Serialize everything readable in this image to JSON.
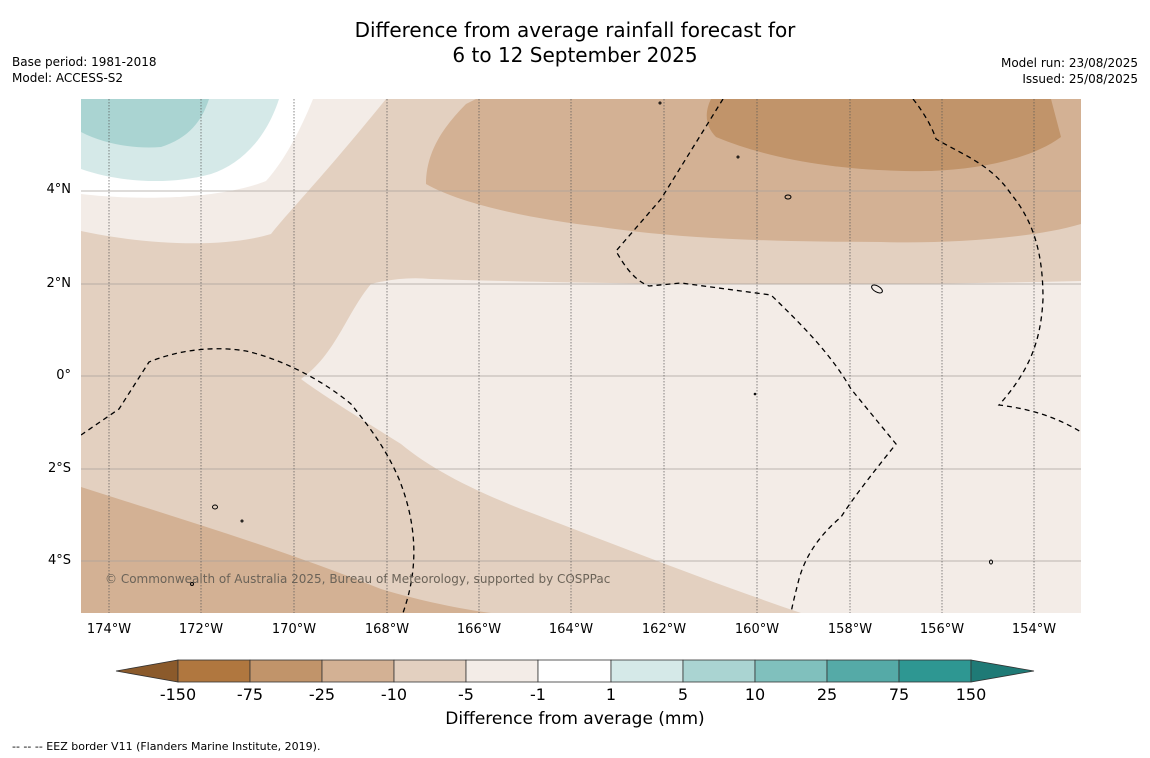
{
  "title": {
    "line1": "Difference from average rainfall forecast for",
    "line2": "6 to 12 September 2025"
  },
  "meta_left": {
    "base_period": "Base period: 1981-2018",
    "model": "Model: ACCESS-S2"
  },
  "meta_right": {
    "model_run": "Model run: 23/08/2025",
    "issued": "Issued: 25/08/2025"
  },
  "latitude_labels": [
    "4°N",
    "2°N",
    "0°",
    "2°S",
    "4°S"
  ],
  "longitude_labels": [
    "174°W",
    "172°W",
    "170°W",
    "168°W",
    "166°W",
    "164°W",
    "162°W",
    "160°W",
    "158°W",
    "156°W",
    "154°W"
  ],
  "copyright": "© Commonwealth of Australia 2025, Bureau of Meteorology, supported by COSPPac",
  "colorbar": {
    "title": "Difference from average (mm)",
    "tick_labels": [
      "-150",
      "-75",
      "-25",
      "-10",
      "-5",
      "-1",
      "1",
      "5",
      "10",
      "25",
      "75",
      "150"
    ],
    "colors": {
      "below_-150": "#8b5a2b",
      "-150_-75": "#b0773f",
      "-75_-25": "#c1946a",
      "-25_-10": "#d3b194",
      "-10_-5": "#e3d0c0",
      "-5_-1": "#f3ece7",
      "-1_1": "#ffffff",
      "1_5": "#d5e9e8",
      "5_10": "#aad4d2",
      "10_25": "#80c0bd",
      "25_75": "#55aaa7",
      "75_150": "#2e9792",
      "above_150": "#1f7a76"
    }
  },
  "footnote": "--  --  -- EEZ border V11 (Flanders Marine Institute, 2019)."
}
